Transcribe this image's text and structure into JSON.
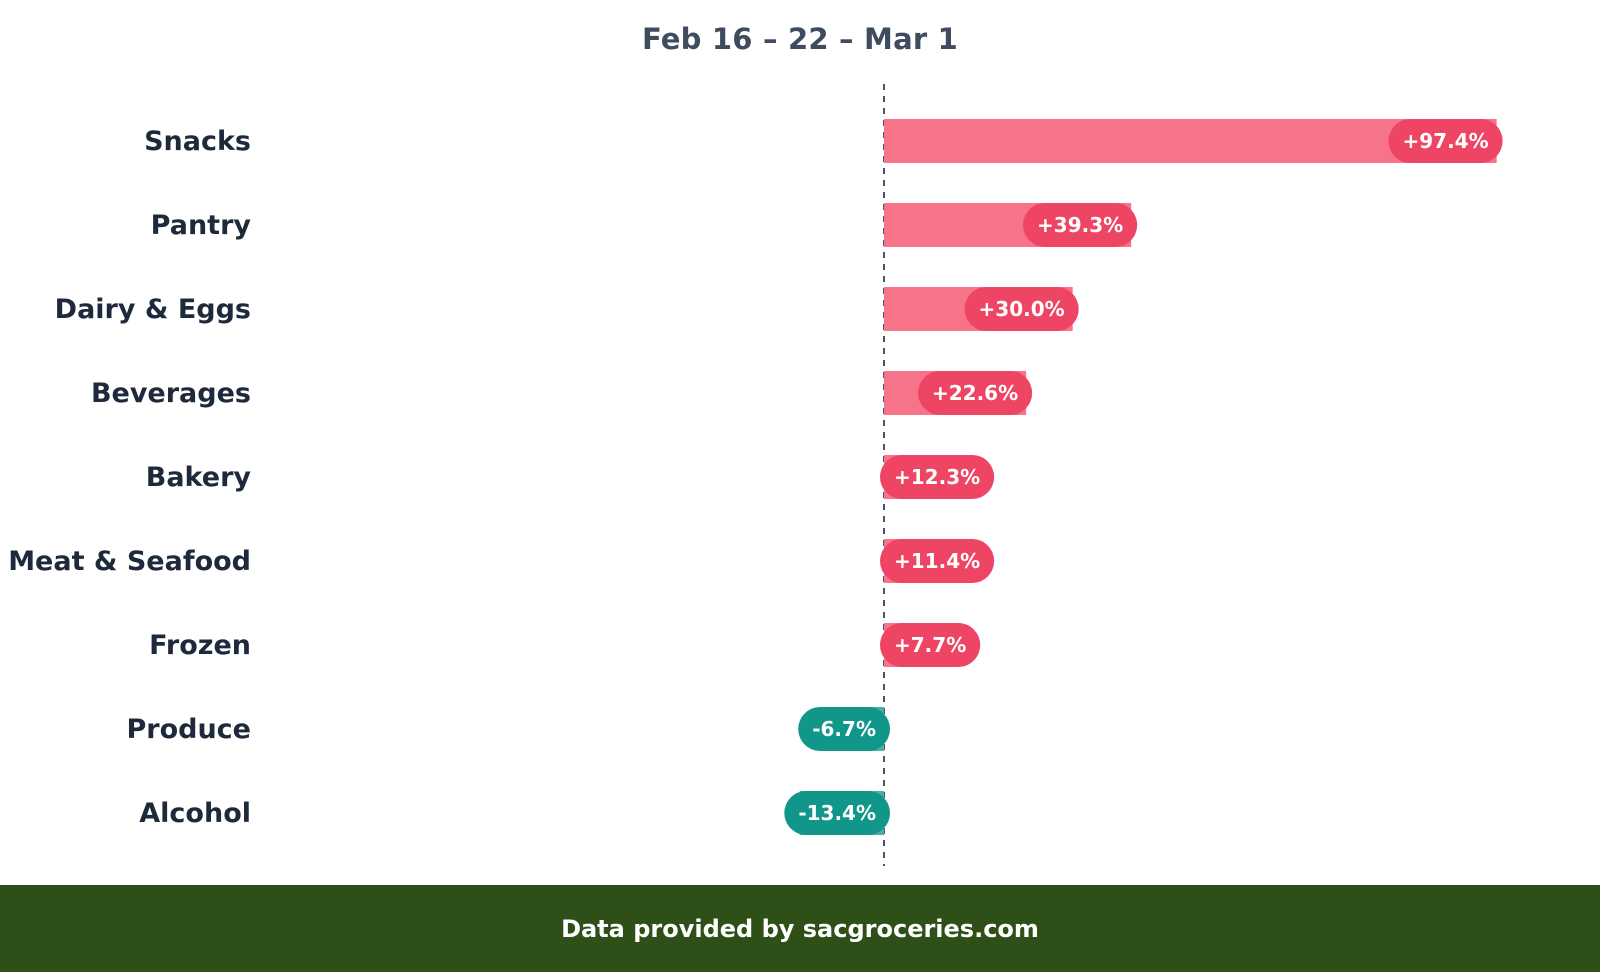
{
  "chart_data": {
    "type": "bar",
    "orientation": "horizontal",
    "title": "Feb 16 – 22 – Mar 1",
    "categories": [
      "Snacks",
      "Pantry",
      "Dairy & Eggs",
      "Beverages",
      "Bakery",
      "Meat & Seafood",
      "Frozen",
      "Produce",
      "Alcohol"
    ],
    "values": [
      97.4,
      39.3,
      30.0,
      22.6,
      12.3,
      11.4,
      7.7,
      -6.7,
      -13.4
    ],
    "data_labels": [
      "+97.4%",
      "+39.3%",
      "+30.0%",
      "+22.6%",
      "+12.3%",
      "+11.4%",
      "+7.7%",
      "-6.7%",
      "-13.4%"
    ],
    "unit": "%",
    "xlim": [
      -30,
      100
    ],
    "grid": false,
    "zero_line": "dashed",
    "colors": {
      "positive_bar": "#f7738a",
      "positive_pill": "#ef4565",
      "negative_bar": "#4eaea4",
      "negative_pill": "#11968a",
      "zero_line": "#4a5568"
    }
  },
  "footer": {
    "text": "Data provided by sacgroceries.com"
  }
}
